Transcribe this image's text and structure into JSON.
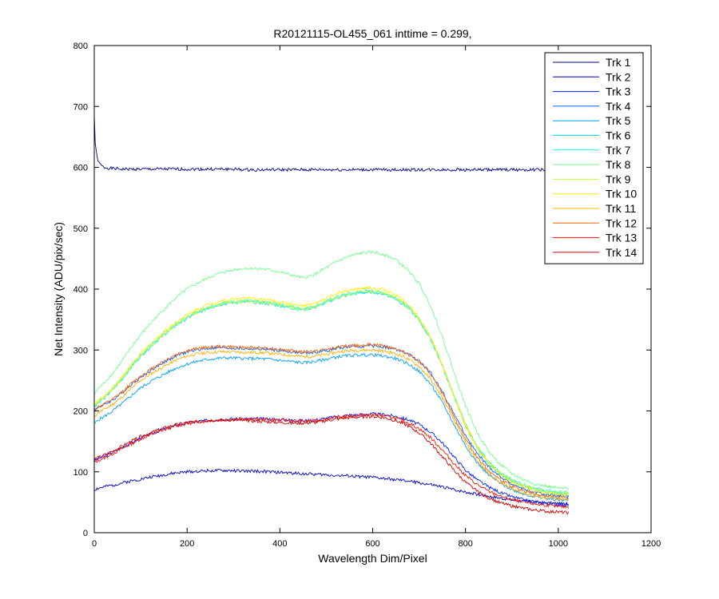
{
  "chart_data": {
    "type": "line",
    "title": "R20121115-OL455_061 inttime = 0.299,",
    "xlabel": "Wavelength Dim/Pixel",
    "ylabel": "Net Intensity (ADU/pix/sec)",
    "xlim": [
      0,
      1200
    ],
    "ylim": [
      0,
      800
    ],
    "xticks": [
      0,
      200,
      400,
      600,
      800,
      1000,
      1200
    ],
    "yticks": [
      0,
      100,
      200,
      300,
      400,
      500,
      600,
      700,
      800
    ],
    "grid": false,
    "legend_position": "top-right",
    "x": [
      0,
      2,
      5,
      10,
      20,
      40,
      60,
      80,
      100,
      125,
      150,
      175,
      200,
      225,
      250,
      275,
      300,
      325,
      350,
      375,
      400,
      425,
      450,
      475,
      500,
      525,
      550,
      575,
      600,
      625,
      650,
      675,
      700,
      725,
      750,
      775,
      800,
      825,
      850,
      875,
      900,
      925,
      950,
      975,
      1000,
      1023
    ],
    "series": [
      {
        "name": "Trk 1",
        "color": "#00008f",
        "values": [
          685,
          640,
          620,
          607,
          600,
          598,
          597,
          597,
          597,
          597,
          597,
          597,
          597,
          597,
          597,
          597,
          597,
          596,
          596,
          596,
          596,
          596,
          596,
          596,
          596,
          596,
          596,
          596,
          596,
          596,
          596,
          596,
          596,
          596,
          596,
          596,
          596,
          596,
          596,
          596,
          596,
          596,
          596,
          596,
          596,
          596
        ]
      },
      {
        "name": "Trk 2",
        "color": "#0000c8",
        "values": [
          70,
          71,
          72,
          73,
          75,
          78,
          82,
          85,
          88,
          92,
          95,
          98,
          100,
          101,
          102,
          102,
          102,
          101,
          101,
          100,
          99,
          98,
          97,
          96,
          95,
          94,
          93,
          92,
          91,
          89,
          87,
          85,
          82,
          79,
          75,
          71,
          67,
          63,
          60,
          57,
          54,
          52,
          50,
          49,
          48,
          47
        ]
      },
      {
        "name": "Trk 3",
        "color": "#0020ff",
        "values": [
          118,
          119,
          120,
          122,
          125,
          132,
          140,
          148,
          155,
          163,
          170,
          176,
          180,
          183,
          185,
          186,
          187,
          187,
          187,
          187,
          186,
          185,
          184,
          185,
          188,
          191,
          193,
          194,
          195,
          194,
          191,
          186,
          178,
          165,
          148,
          125,
          103,
          87,
          75,
          66,
          59,
          54,
          51,
          48,
          46,
          45
        ]
      },
      {
        "name": "Trk 4",
        "color": "#0060ff",
        "values": [
          200,
          202,
          204,
          207,
          210,
          218,
          230,
          244,
          255,
          268,
          280,
          290,
          297,
          301,
          303,
          304,
          303,
          302,
          302,
          301,
          299,
          297,
          295,
          296,
          299,
          303,
          305,
          306,
          307,
          305,
          301,
          294,
          282,
          262,
          232,
          196,
          160,
          130,
          108,
          92,
          80,
          72,
          66,
          62,
          60,
          59
        ]
      },
      {
        "name": "Trk 5",
        "color": "#00a0ff",
        "values": [
          178,
          180,
          183,
          186,
          190,
          200,
          212,
          225,
          238,
          250,
          260,
          270,
          277,
          282,
          285,
          287,
          287,
          286,
          286,
          285,
          283,
          281,
          279,
          281,
          285,
          289,
          291,
          292,
          292,
          290,
          286,
          278,
          265,
          244,
          214,
          178,
          143,
          115,
          95,
          81,
          71,
          64,
          59,
          56,
          54,
          53
        ]
      },
      {
        "name": "Trk 6",
        "color": "#00e0ff",
        "values": [
          205,
          208,
          211,
          215,
          220,
          235,
          252,
          272,
          290,
          308,
          325,
          340,
          352,
          362,
          370,
          375,
          378,
          379,
          378,
          376,
          373,
          369,
          366,
          370,
          378,
          386,
          391,
          394,
          395,
          392,
          384,
          370,
          349,
          318,
          274,
          224,
          177,
          140,
          114,
          97,
          85,
          77,
          71,
          67,
          65,
          64
        ]
      },
      {
        "name": "Trk 7",
        "color": "#20ffdf",
        "values": [
          207,
          210,
          213,
          217,
          222,
          237,
          254,
          274,
          292,
          310,
          327,
          342,
          354,
          364,
          372,
          377,
          380,
          381,
          380,
          378,
          375,
          371,
          368,
          372,
          380,
          388,
          393,
          396,
          397,
          394,
          386,
          372,
          351,
          320,
          276,
          226,
          179,
          142,
          116,
          99,
          87,
          79,
          73,
          69,
          67,
          66
        ]
      },
      {
        "name": "Trk 8",
        "color": "#70ff8f",
        "values": [
          225,
          229,
          233,
          238,
          245,
          262,
          282,
          305,
          325,
          347,
          367,
          385,
          400,
          411,
          420,
          427,
          432,
          434,
          434,
          432,
          428,
          423,
          418,
          424,
          435,
          446,
          454,
          459,
          461,
          457,
          448,
          432,
          409,
          373,
          322,
          264,
          209,
          165,
          133,
          112,
          97,
          87,
          80,
          76,
          73,
          72
        ]
      },
      {
        "name": "Trk 9",
        "color": "#c0ff3f",
        "values": [
          206,
          209,
          212,
          216,
          221,
          236,
          253,
          273,
          291,
          309,
          326,
          341,
          353,
          363,
          371,
          376,
          379,
          380,
          379,
          377,
          374,
          370,
          367,
          371,
          379,
          387,
          392,
          395,
          396,
          393,
          385,
          371,
          350,
          319,
          275,
          225,
          178,
          141,
          115,
          98,
          86,
          78,
          72,
          68,
          66,
          65
        ]
      },
      {
        "name": "Trk 10",
        "color": "#ffef00",
        "values": [
          208,
          211,
          214,
          218,
          223,
          238,
          256,
          276,
          294,
          313,
          330,
          345,
          358,
          368,
          376,
          381,
          384,
          385,
          384,
          382,
          379,
          375,
          372,
          376,
          385,
          393,
          398,
          401,
          402,
          399,
          390,
          376,
          354,
          322,
          276,
          224,
          176,
          138,
          112,
          95,
          83,
          75,
          69,
          65,
          63,
          62
        ]
      },
      {
        "name": "Trk 11",
        "color": "#ffb000",
        "values": [
          190,
          192,
          195,
          198,
          202,
          211,
          223,
          237,
          250,
          262,
          273,
          283,
          290,
          294,
          296,
          297,
          297,
          296,
          296,
          295,
          293,
          291,
          289,
          290,
          293,
          297,
          299,
          300,
          300,
          298,
          294,
          286,
          273,
          252,
          222,
          185,
          148,
          118,
          97,
          82,
          72,
          65,
          60,
          57,
          55,
          54
        ]
      },
      {
        "name": "Trk 12",
        "color": "#ff6000",
        "values": [
          200,
          202,
          204,
          207,
          210,
          219,
          231,
          245,
          257,
          270,
          282,
          292,
          299,
          303,
          305,
          306,
          305,
          304,
          304,
          303,
          301,
          299,
          297,
          298,
          301,
          305,
          307,
          308,
          309,
          307,
          302,
          294,
          281,
          260,
          229,
          191,
          154,
          124,
          102,
          87,
          76,
          69,
          63,
          60,
          58,
          57
        ]
      },
      {
        "name": "Trk 13",
        "color": "#ff1000",
        "values": [
          115,
          116,
          117,
          119,
          122,
          130,
          138,
          146,
          154,
          162,
          169,
          175,
          179,
          182,
          184,
          185,
          186,
          186,
          186,
          186,
          185,
          184,
          183,
          184,
          187,
          190,
          192,
          193,
          194,
          192,
          188,
          181,
          171,
          156,
          136,
          114,
          94,
          79,
          68,
          60,
          54,
          50,
          47,
          45,
          43,
          42
        ]
      },
      {
        "name": "Trk 14",
        "color": "#d00000",
        "values": [
          120,
          121,
          122,
          124,
          127,
          134,
          142,
          150,
          158,
          165,
          172,
          177,
          181,
          183,
          185,
          185,
          185,
          184,
          183,
          182,
          181,
          180,
          180,
          181,
          184,
          187,
          189,
          190,
          191,
          189,
          184,
          176,
          164,
          147,
          125,
          103,
          83,
          68,
          57,
          49,
          44,
          40,
          37,
          35,
          34,
          33
        ]
      }
    ]
  }
}
